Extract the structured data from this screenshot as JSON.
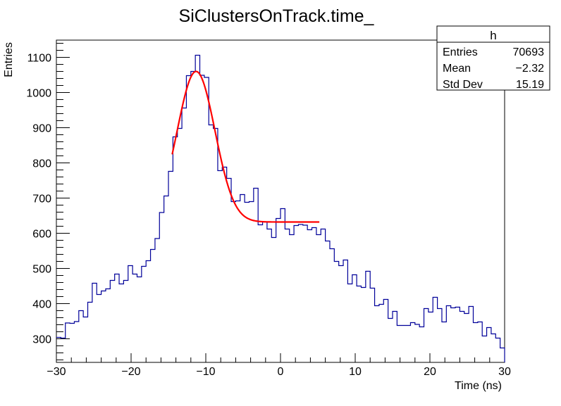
{
  "chart_data": {
    "type": "histogram",
    "title": "SiClustersOnTrack.time_",
    "xlabel": "Time (ns)",
    "ylabel": "Entries",
    "xlim": [
      -30,
      30
    ],
    "ylim": [
      233,
      1149
    ],
    "x_ticks": [
      -30,
      -20,
      -10,
      0,
      10,
      20,
      30
    ],
    "x_tick_labels": [
      "−30",
      "−20",
      "−10",
      "0",
      "10",
      "20",
      "30"
    ],
    "y_ticks": [
      300,
      400,
      500,
      600,
      700,
      800,
      900,
      1000,
      1100
    ],
    "y_tick_labels": [
      "300",
      "400",
      "500",
      "600",
      "700",
      "800",
      "900",
      "1000",
      "1100"
    ],
    "grid": false,
    "bin_width": 0.6,
    "line_color": "#000099",
    "values": [
      304,
      302,
      345,
      344,
      349,
      380,
      362,
      404,
      458,
      426,
      436,
      442,
      466,
      484,
      456,
      466,
      508,
      484,
      476,
      506,
      522,
      554,
      585,
      659,
      706,
      776,
      874,
      898,
      956,
      1048,
      1060,
      1106,
      1049,
      1043,
      908,
      898,
      778,
      788,
      756,
      690,
      692,
      710,
      688,
      690,
      728,
      624,
      632,
      612,
      588,
      642,
      670,
      612,
      596,
      622,
      625,
      623,
      610,
      616,
      596,
      612,
      578,
      556,
      520,
      508,
      524,
      456,
      482,
      450,
      446,
      492,
      444,
      394,
      398,
      412,
      358,
      378,
      338,
      338,
      338,
      346,
      341,
      334,
      386,
      376,
      418,
      386,
      348,
      394,
      388,
      390,
      378,
      372,
      392,
      346,
      348,
      308,
      332,
      314,
      302,
      274
    ],
    "fit": {
      "function": "gaus+pol0",
      "color": "#ff0000",
      "range": [
        -14.5,
        5.2
      ],
      "amplitude": 428,
      "mean": -11.3,
      "sigma": 2.53,
      "constant": 632
    },
    "stats": {
      "title": "h",
      "rows": [
        {
          "label": "Entries",
          "value": "70693"
        },
        {
          "label": "Mean",
          "value": "−2.32"
        },
        {
          "label": "Std Dev",
          "value": "15.19"
        }
      ]
    }
  }
}
